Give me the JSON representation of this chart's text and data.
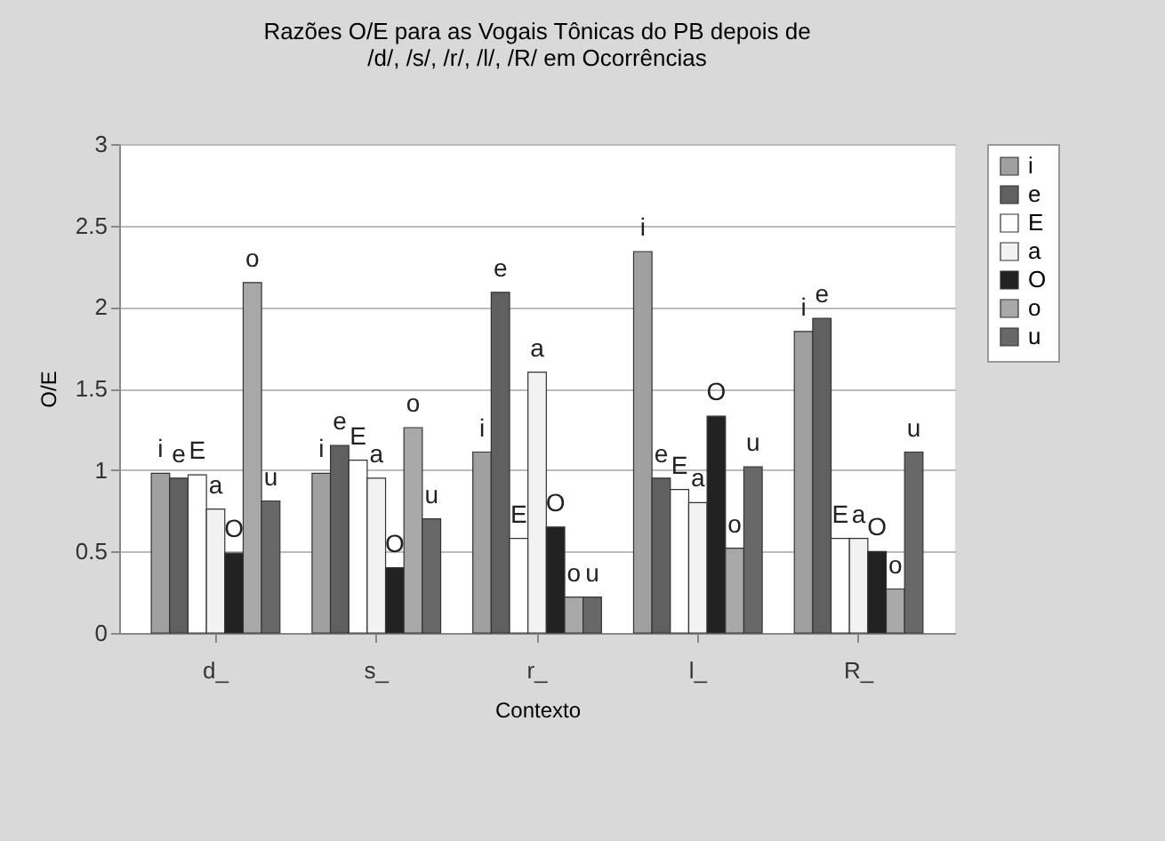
{
  "chart_data": {
    "type": "bar",
    "title": "Razões O/E  para as Vogais Tônicas do PB depois de\n/d/, /s/, /r/, /l/, /R/ em Ocorrências",
    "xlabel": "Contexto",
    "ylabel": "O/E",
    "categories": [
      "d_",
      "s_",
      "r_",
      "l_",
      "R_"
    ],
    "series": [
      {
        "name": "i",
        "color": "#a0a0a0",
        "values": [
          0.98,
          0.98,
          1.11,
          2.34,
          1.85
        ],
        "value_labels": [
          "i",
          "i",
          "i",
          "i",
          "i"
        ]
      },
      {
        "name": "e",
        "color": "#606060",
        "values": [
          0.95,
          1.15,
          2.09,
          0.95,
          1.93
        ],
        "value_labels": [
          "e",
          "e",
          "e",
          "e",
          "e"
        ]
      },
      {
        "name": "E",
        "color": "#ffffff",
        "values": [
          0.97,
          1.06,
          0.58,
          0.88,
          0.58
        ],
        "value_labels": [
          "E",
          "E",
          "E",
          "E",
          "E"
        ]
      },
      {
        "name": "a",
        "color": "#f2f2f2",
        "values": [
          0.76,
          0.95,
          1.6,
          0.8,
          0.58
        ],
        "value_labels": [
          "a",
          "a",
          "a",
          "a",
          "a"
        ]
      },
      {
        "name": "O",
        "color": "#222222",
        "values": [
          0.49,
          0.4,
          0.65,
          1.33,
          0.5
        ],
        "value_labels": [
          "O",
          "O",
          "O",
          "O",
          "O"
        ]
      },
      {
        "name": "o",
        "color": "#a8a8a8",
        "values": [
          2.15,
          1.26,
          0.22,
          0.52,
          0.27
        ],
        "value_labels": [
          "o",
          "o",
          "o",
          "o",
          "o"
        ]
      },
      {
        "name": "u",
        "color": "#686868",
        "values": [
          0.81,
          0.7,
          0.22,
          1.02,
          1.11
        ],
        "value_labels": [
          "u",
          "u",
          "u",
          "u",
          "u"
        ]
      }
    ],
    "ylim": [
      0,
      3
    ],
    "yticks": [
      0,
      0.5,
      1,
      1.5,
      2,
      2.5,
      3
    ],
    "grid": "y",
    "legend": "right"
  }
}
